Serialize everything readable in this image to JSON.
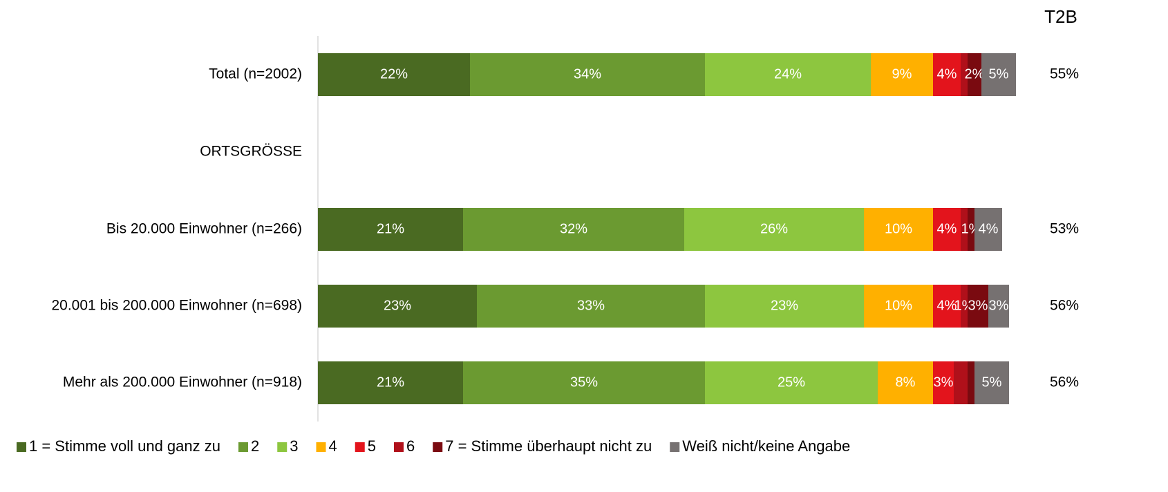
{
  "chart_data": {
    "type": "stacked-bar-horizontal",
    "orientation": "horizontal",
    "categories": [
      "Total (n=2002)",
      "ORTSGRÖSSE",
      "Bis 20.000 Einwohner (n=266)",
      "20.001 bis 200.000 Einwohner (n=698)",
      "Mehr als 200.000 Einwohner (n=918)"
    ],
    "xlim": [
      0,
      100
    ],
    "series": [
      {
        "name": "1 = Stimme voll und ganz zu",
        "color": "#4a6a22",
        "values": [
          22,
          null,
          21,
          23,
          21
        ],
        "value_labels": [
          "22%",
          null,
          "21%",
          "23%",
          "21%"
        ]
      },
      {
        "name": "2",
        "color": "#6b9a31",
        "values": [
          34,
          null,
          32,
          33,
          35
        ],
        "value_labels": [
          "34%",
          null,
          "32%",
          "33%",
          "35%"
        ]
      },
      {
        "name": "3",
        "color": "#8dc63f",
        "values": [
          24,
          null,
          26,
          23,
          25
        ],
        "value_labels": [
          "24%",
          null,
          "26%",
          "23%",
          "25%"
        ]
      },
      {
        "name": "4",
        "color": "#ffb000",
        "values": [
          9,
          null,
          10,
          10,
          8
        ],
        "value_labels": [
          "9%",
          null,
          "10%",
          "10%",
          "8%"
        ]
      },
      {
        "name": "5",
        "color": "#e3141c",
        "values": [
          4,
          null,
          4,
          4,
          3
        ],
        "value_labels": [
          "4%",
          null,
          "4%",
          "4%",
          "3%"
        ]
      },
      {
        "name": "6",
        "color": "#b0101a",
        "values": [
          1,
          null,
          1,
          1,
          2
        ],
        "value_labels": [
          null,
          null,
          null,
          "1%",
          null
        ]
      },
      {
        "name": "7 = Stimme überhaupt nicht zu",
        "color": "#7a0a10",
        "values": [
          2,
          null,
          1,
          3,
          1
        ],
        "value_labels": [
          "2%",
          null,
          "1%",
          "3%",
          null
        ]
      },
      {
        "name": "Weiß nicht/keine Angabe",
        "color": "#767171",
        "values": [
          5,
          null,
          4,
          3,
          5
        ],
        "value_labels": [
          "5%",
          null,
          "4%",
          "3%",
          "5%"
        ]
      }
    ],
    "t2b": {
      "title": "T2B",
      "values": [
        55,
        null,
        53,
        56,
        56
      ],
      "value_labels": [
        "55%",
        null,
        "53%",
        "56%",
        "56%"
      ]
    }
  }
}
